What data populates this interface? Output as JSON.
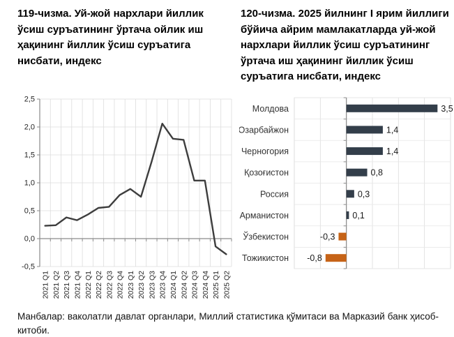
{
  "titles": {
    "left": "119-чизма. Уй-жой нархлари йиллик ўсиш суръатининг ўртача ойлик иш ҳақининг йиллик ўсиш суръатига нисбати, индекс",
    "right": "120-чизма. 2025 йилнинг I ярим йиллиги бўйича айрим мамлакатларда уй-жой нархлари йиллик ўсиш суръатининг ўртача иш ҳақининг йиллик ўсиш суръатига нисбати, индекс"
  },
  "footer": "Манбалар: ваколатли давлат органлари, Миллий статистика қўмитаси ва Марказий банк ҳисоб-китоби.",
  "colors": {
    "line": "#3d3d3d",
    "bar_positive": "#333e4a",
    "bar_negative": "#c66317",
    "grid": "#dcdcdc",
    "axis": "#8a8a8a",
    "tick_text": "#262626",
    "label_text": "#1a1a1a"
  },
  "chart_data": [
    {
      "id": "line-chart-119",
      "type": "line",
      "title": "119-чизма",
      "categories": [
        "2021 Q1",
        "2021 Q2",
        "2021 Q3",
        "2021 Q4",
        "2022 Q1",
        "2022 Q2",
        "2022 Q3",
        "2022 Q4",
        "2023 Q1",
        "2023 Q2",
        "2023 Q3",
        "2023 Q4",
        "2024 Q1",
        "2024 Q2",
        "2024 Q3",
        "2024 Q4",
        "2025 Q1",
        "2025 Q2"
      ],
      "values": [
        0.23,
        0.24,
        0.38,
        0.33,
        0.43,
        0.55,
        0.57,
        0.78,
        0.89,
        0.75,
        1.38,
        2.06,
        1.79,
        1.77,
        1.04,
        1.04,
        -0.14,
        -0.28
      ],
      "ylim": [
        -0.5,
        2.5
      ],
      "ytick_step": 0.5,
      "ytick_labels_top_down": [
        "2,5",
        "2,0",
        "1,5",
        "1,0",
        "0,5",
        "0,0",
        "-0,5"
      ],
      "grid": true,
      "legend": "none",
      "xlabel": "",
      "ylabel": ""
    },
    {
      "id": "bar-chart-120",
      "type": "bar",
      "orientation": "horizontal",
      "title": "120-чизма",
      "categories": [
        "Молдова",
        "Озарбайжон",
        "Черногория",
        "Қозоғистон",
        "Россия",
        "Арманистон",
        "Ўзбекистон",
        "Тожикистон"
      ],
      "values": [
        3.5,
        1.4,
        1.4,
        0.8,
        0.3,
        0.1,
        -0.3,
        -0.8
      ],
      "value_labels": [
        "3,5",
        "1,4",
        "1,4",
        "0,8",
        "0,3",
        "0,1",
        "-0,3",
        "-0,8"
      ],
      "xlim": [
        -2,
        4
      ],
      "xtick_step": 1,
      "grid": true,
      "legend": "none",
      "xlabel": "",
      "ylabel": ""
    }
  ]
}
